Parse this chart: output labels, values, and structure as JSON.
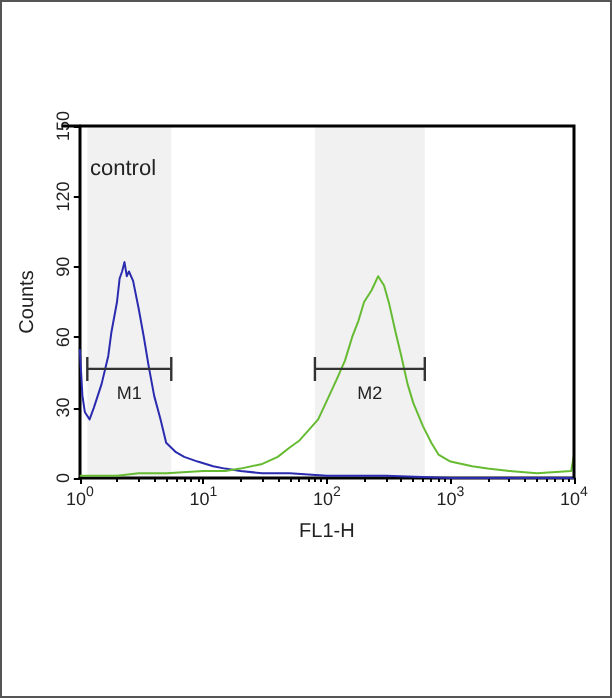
{
  "chart_data": {
    "type": "line",
    "xlabel": "FL1-H",
    "ylabel": "Counts",
    "annotations": [
      "control"
    ],
    "log": "x",
    "xlim": [
      1,
      10000
    ],
    "ylim": [
      0,
      150
    ],
    "xticks": [
      {
        "value": 1,
        "label": "10$^{0}$"
      },
      {
        "value": 10,
        "label": "10$^{1}$"
      },
      {
        "value": 100,
        "label": "10$^{2}$"
      },
      {
        "value": 1000,
        "label": "10$^{3}$"
      },
      {
        "value": 10000,
        "label": "10$^{4}$"
      }
    ],
    "yticks": [
      0,
      30,
      60,
      90,
      120,
      150
    ],
    "grid": false,
    "marker": "none",
    "line_style": "solid",
    "bands": [
      {
        "axis": "x",
        "from": 1.15,
        "to": 5.5,
        "label": "M1",
        "color": "#333333"
      },
      {
        "axis": "x",
        "from": 80,
        "to": 620,
        "label": "M2",
        "color": "#333333"
      }
    ],
    "series": [
      {
        "color": "#2b2bb0",
        "x": [
          1,
          1.05,
          1.1,
          1.2,
          1.3,
          1.5,
          1.7,
          1.8,
          2,
          2.1,
          2.2,
          2.3,
          2.4,
          2.5,
          2.7,
          3,
          3.3,
          3.6,
          4,
          4.5,
          5,
          6,
          7,
          9,
          12,
          15,
          20,
          30,
          50,
          100,
          300,
          1000,
          3000,
          10000
        ],
        "values": [
          55,
          35,
          28,
          25,
          30,
          40,
          52,
          62,
          75,
          85,
          88,
          92,
          86,
          88,
          84,
          72,
          60,
          48,
          35,
          25,
          15,
          11,
          9,
          7,
          5,
          4,
          3,
          2,
          2,
          1,
          1,
          0,
          0,
          0
        ]
      },
      {
        "color": "#66bb33",
        "x": [
          1,
          2,
          3,
          5,
          10,
          15,
          20,
          30,
          40,
          50,
          60,
          70,
          85,
          100,
          120,
          140,
          160,
          180,
          200,
          230,
          260,
          290,
          320,
          360,
          400,
          450,
          500,
          600,
          700,
          800,
          1000,
          1500,
          2000,
          3000,
          5000,
          9500,
          10000
        ],
        "values": [
          1,
          1,
          2,
          2,
          3,
          3,
          4,
          6,
          9,
          13,
          16,
          20,
          25,
          33,
          42,
          50,
          60,
          67,
          75,
          80,
          86,
          82,
          74,
          62,
          52,
          40,
          32,
          22,
          15,
          10,
          7,
          5,
          4,
          3,
          2,
          3,
          10
        ]
      }
    ]
  }
}
